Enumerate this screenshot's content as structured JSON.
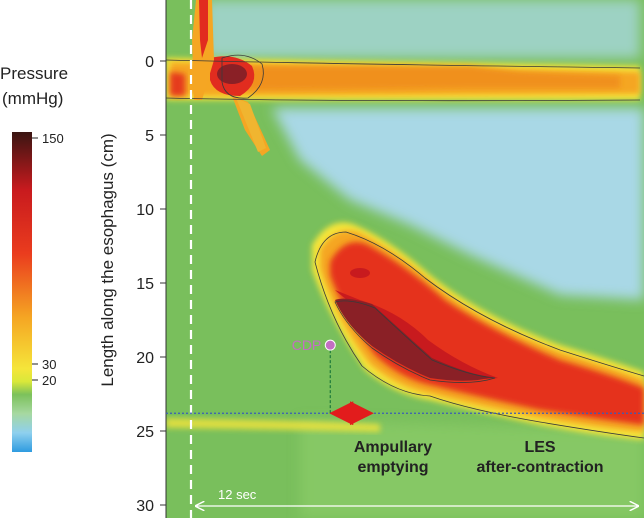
{
  "chart_data": {
    "type": "heatmap",
    "ylabel": "Length along the esophagus (cm)",
    "yticks": [
      0,
      5,
      10,
      15,
      20,
      25,
      30
    ],
    "ylim": [
      -4,
      31
    ],
    "colorbar": {
      "title_line1": "Pressure",
      "title_line2": "(mmHg)",
      "ticks": [
        {
          "label": "150",
          "value": 150
        },
        {
          "label": "30",
          "value": 30
        },
        {
          "label": "20",
          "value": 20
        }
      ],
      "range": [
        -5,
        150
      ]
    },
    "annotations": {
      "cdp_label": "CDP",
      "cdp_point": {
        "t": 12.1,
        "y": 19.2
      },
      "ampullary_line1": "Ampullary",
      "ampullary_line2": "emptying",
      "les_line1": "LES",
      "les_line2": "after-contraction",
      "time_scale_label": "12 sec",
      "reference_depth": 23.8,
      "ampullary_span_t": [
        12.1,
        15.8
      ]
    },
    "colors": {
      "background_green": "#79bf5c",
      "light_blue": "#a9d8e6",
      "yellow": "#f5e53a",
      "orange": "#f5a623",
      "red": "#e02020",
      "dark_red": "#7a1a22",
      "cdp": "#c36fc2",
      "arrow_red": "#e21c1c",
      "blue_dotted": "#3b5bb5",
      "contour": "#3a3a3a"
    }
  }
}
